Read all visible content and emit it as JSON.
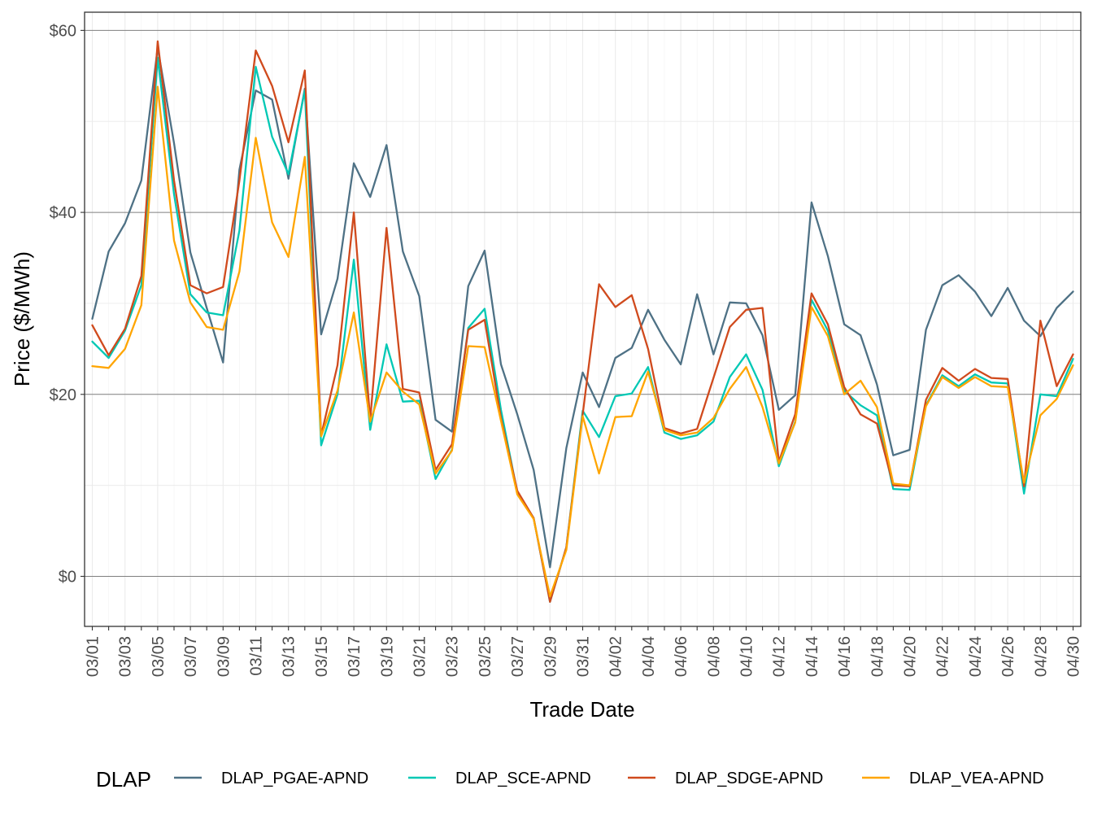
{
  "chart_data": {
    "type": "line",
    "xlabel": "Trade Date",
    "ylabel": "Price ($/MWh)",
    "ylim": [
      -5.5,
      62
    ],
    "y_ticks": [
      0,
      20,
      40,
      60
    ],
    "y_tick_labels": [
      "$0",
      "$20",
      "$40",
      "$60"
    ],
    "x_tick_labels": [
      "03/01",
      "03/03",
      "03/05",
      "03/07",
      "03/09",
      "03/11",
      "03/13",
      "03/15",
      "03/17",
      "03/19",
      "03/21",
      "03/23",
      "03/25",
      "03/27",
      "03/29",
      "03/31",
      "04/02",
      "04/04",
      "04/06",
      "04/08",
      "04/10",
      "04/12",
      "04/14",
      "04/16",
      "04/18",
      "04/20",
      "04/22",
      "04/24",
      "04/26",
      "04/28",
      "04/30"
    ],
    "grid": true,
    "legend": {
      "title": "DLAP",
      "position": "bottom"
    },
    "x": [
      "03/01",
      "03/02",
      "03/03",
      "03/04",
      "03/05",
      "03/06",
      "03/07",
      "03/08",
      "03/09",
      "03/10",
      "03/11",
      "03/12",
      "03/13",
      "03/14",
      "03/15",
      "03/16",
      "03/17",
      "03/18",
      "03/19",
      "03/20",
      "03/21",
      "03/22",
      "03/23",
      "03/24",
      "03/25",
      "03/26",
      "03/27",
      "03/28",
      "03/29",
      "03/30",
      "03/31",
      "04/01",
      "04/02",
      "04/03",
      "04/04",
      "04/05",
      "04/06",
      "04/07",
      "04/08",
      "04/09",
      "04/10",
      "04/11",
      "04/12",
      "04/13",
      "04/14",
      "04/15",
      "04/16",
      "04/17",
      "04/18",
      "04/19",
      "04/20",
      "04/21",
      "04/22",
      "04/23",
      "04/24",
      "04/25",
      "04/26",
      "04/27",
      "04/28",
      "04/29",
      "04/30"
    ],
    "series": [
      {
        "name": "DLAP_PGAE-APND",
        "color": "#4e7185",
        "values": [
          28.3,
          35.7,
          38.8,
          43.5,
          58.1,
          47.6,
          35.6,
          29.5,
          23.5,
          44.7,
          53.4,
          52.4,
          43.7,
          53.6,
          26.6,
          32.7,
          45.4,
          41.7,
          47.4,
          35.7,
          30.8,
          17.2,
          15.9,
          31.9,
          35.8,
          23.3,
          17.8,
          11.7,
          1.0,
          14.1,
          22.4,
          18.6,
          24.0,
          25.1,
          29.3,
          26.0,
          23.3,
          31.0,
          24.4,
          30.1,
          30.0,
          26.5,
          18.3,
          19.9,
          41.1,
          35.2,
          27.7,
          26.5,
          21.1,
          13.3,
          13.9,
          27.1,
          32.0,
          33.1,
          31.3,
          28.6,
          31.7,
          28.1,
          26.4,
          29.5,
          31.3
        ]
      },
      {
        "name": "DLAP_SCE-APND",
        "color": "#00c8b4",
        "values": [
          25.8,
          24.0,
          27.0,
          32.0,
          57.0,
          42.0,
          31.0,
          29.0,
          28.7,
          38.0,
          56.0,
          48.3,
          44.2,
          53.4,
          14.4,
          20.0,
          34.8,
          16.1,
          25.5,
          19.2,
          19.3,
          10.7,
          13.9,
          27.3,
          29.4,
          18.3,
          9.2,
          6.4,
          -2.8,
          3.2,
          18.2,
          15.3,
          19.8,
          20.1,
          23.0,
          15.8,
          15.1,
          15.5,
          17.0,
          21.9,
          24.4,
          20.5,
          12.1,
          17.0,
          30.4,
          27.0,
          20.4,
          18.8,
          17.7,
          9.6,
          9.5,
          18.8,
          22.1,
          20.9,
          22.2,
          21.3,
          21.2,
          9.1,
          20.0,
          19.8,
          23.9
        ]
      },
      {
        "name": "DLAP_SDGE-APND",
        "color": "#d04a1d",
        "values": [
          27.6,
          24.3,
          27.2,
          33.0,
          58.8,
          43.5,
          32.0,
          31.1,
          31.8,
          43.5,
          57.8,
          53.9,
          47.7,
          55.6,
          15.5,
          23.2,
          40.0,
          17.2,
          38.3,
          20.6,
          20.2,
          11.7,
          14.5,
          27.1,
          28.2,
          17.4,
          9.4,
          6.4,
          -2.8,
          3.2,
          17.8,
          32.1,
          29.6,
          30.9,
          25.0,
          16.3,
          15.7,
          16.2,
          21.8,
          27.4,
          29.3,
          29.5,
          12.6,
          17.8,
          31.1,
          27.7,
          20.8,
          17.8,
          16.8,
          10.0,
          9.9,
          19.4,
          22.9,
          21.5,
          22.8,
          21.8,
          21.7,
          9.9,
          28.1,
          20.9,
          24.4
        ]
      },
      {
        "name": "DLAP_VEA-APND",
        "color": "#ffa500",
        "values": [
          23.1,
          22.9,
          25.0,
          29.8,
          53.8,
          36.9,
          30.1,
          27.4,
          27.1,
          33.5,
          48.2,
          38.9,
          35.1,
          46.1,
          15.4,
          20.4,
          29.0,
          17.0,
          22.4,
          20.3,
          18.9,
          11.3,
          13.8,
          25.3,
          25.2,
          17.1,
          9.0,
          6.3,
          -2.2,
          2.9,
          17.6,
          11.3,
          17.5,
          17.6,
          22.5,
          16.1,
          15.5,
          15.8,
          17.4,
          20.6,
          23.0,
          18.6,
          12.4,
          16.9,
          29.6,
          26.4,
          20.0,
          21.5,
          18.6,
          10.2,
          10.0,
          18.7,
          21.9,
          20.7,
          21.9,
          20.9,
          20.8,
          10.3,
          17.7,
          19.5,
          23.2
        ]
      }
    ]
  }
}
